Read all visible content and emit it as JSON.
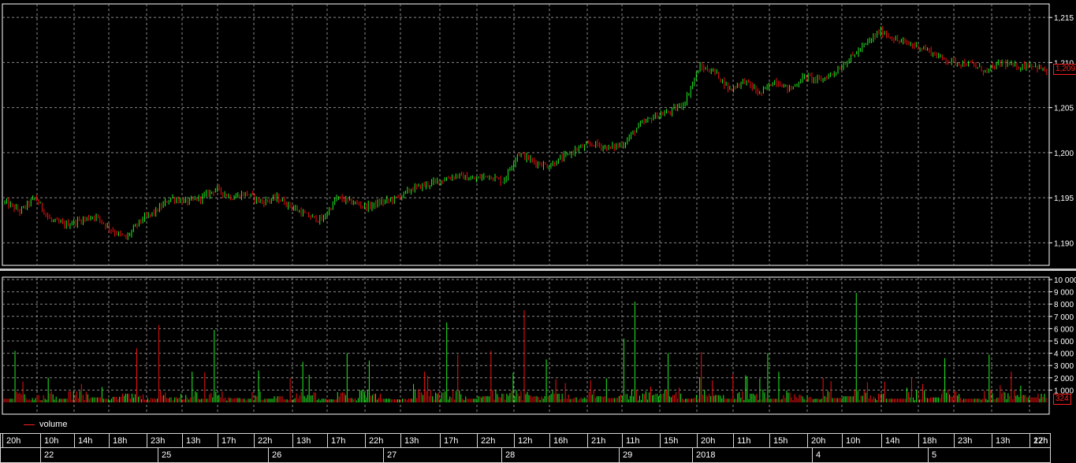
{
  "price_axis": {
    "ticks": [
      "1,190",
      "1,195",
      "1,200",
      "1,205",
      "1,210",
      "1,215"
    ],
    "current_label": "1,209"
  },
  "volume_axis": {
    "ticks": [
      "1 000",
      "2 000",
      "3 000",
      "4 000",
      "5 000",
      "6 000",
      "7 000",
      "8 000",
      "9 000",
      "10 000"
    ],
    "current_label": "324"
  },
  "legend": {
    "label": "volume",
    "color": "#ff2020"
  },
  "colors": {
    "up": "#22ee22",
    "down": "#ee1111",
    "grid": "#8a8a8a",
    "frame": "#ffffff"
  },
  "timeline": {
    "hours": [
      "20h",
      "10h",
      "14h",
      "18h",
      "23h",
      "13h",
      "17h",
      "22h",
      "13h",
      "17h",
      "22h",
      "13h",
      "17h",
      "22h",
      "12h",
      "16h",
      "21h",
      "11h",
      "15h",
      "20h",
      "11h",
      "15h",
      "20h",
      "10h",
      "14h",
      "18h",
      "23h",
      "13h",
      "17h",
      "22h"
    ],
    "dates": [
      "22",
      "25",
      "26",
      "27",
      "28",
      "29",
      "2018",
      "4",
      "5"
    ]
  },
  "chart_data": [
    {
      "type": "line",
      "series_kind": "price",
      "ylim": [
        1.1875,
        1.2165
      ],
      "points": [
        1.1945,
        1.1935,
        1.195,
        1.1925,
        1.192,
        1.1925,
        1.193,
        1.1915,
        1.1905,
        1.1925,
        1.1935,
        1.195,
        1.1945,
        1.195,
        1.196,
        1.195,
        1.1955,
        1.1945,
        1.195,
        1.194,
        1.193,
        1.1925,
        1.195,
        1.1945,
        1.194,
        1.1945,
        1.195,
        1.196,
        1.1965,
        1.197,
        1.1975,
        1.197,
        1.1975,
        1.1968,
        1.2,
        1.199,
        1.1985,
        1.1995,
        1.2005,
        1.201,
        1.2005,
        1.201,
        1.203,
        1.204,
        1.2045,
        1.2055,
        1.2095,
        1.209,
        1.207,
        1.208,
        1.2065,
        1.208,
        1.207,
        1.2085,
        1.208,
        1.209,
        1.2105,
        1.212,
        1.2135,
        1.2125,
        1.212,
        1.2115,
        1.2105,
        1.21,
        1.2098,
        1.209,
        1.21,
        1.2095,
        1.2098,
        1.209
      ]
    },
    {
      "type": "bar",
      "series_kind": "volume",
      "ylim": [
        0,
        10000
      ],
      "samples": [
        300,
        4200,
        350,
        600,
        2000,
        300,
        900,
        1500,
        400,
        300,
        450,
        700,
        4400,
        350,
        6300,
        400,
        700,
        2500,
        300,
        5900,
        400,
        350,
        300,
        2600,
        300,
        500,
        250,
        3300,
        800,
        300,
        250,
        4000,
        350,
        3400,
        700,
        300,
        250,
        300,
        1500,
        2500,
        800,
        6500,
        3900,
        300,
        500,
        4200,
        700,
        2400,
        7500,
        500,
        3500,
        700,
        300,
        400,
        1800,
        500,
        350,
        5200,
        8200,
        900,
        700,
        4000,
        1200,
        300,
        4100,
        1800,
        600,
        300,
        2200,
        700,
        4000,
        300,
        2500,
        800,
        600,
        300,
        2000,
        350,
        500,
        8900,
        3600,
        700,
        300,
        300,
        2000,
        1500,
        400,
        3600,
        900,
        300,
        300,
        3900,
        1400,
        2500,
        600,
        400,
        700
      ]
    }
  ]
}
